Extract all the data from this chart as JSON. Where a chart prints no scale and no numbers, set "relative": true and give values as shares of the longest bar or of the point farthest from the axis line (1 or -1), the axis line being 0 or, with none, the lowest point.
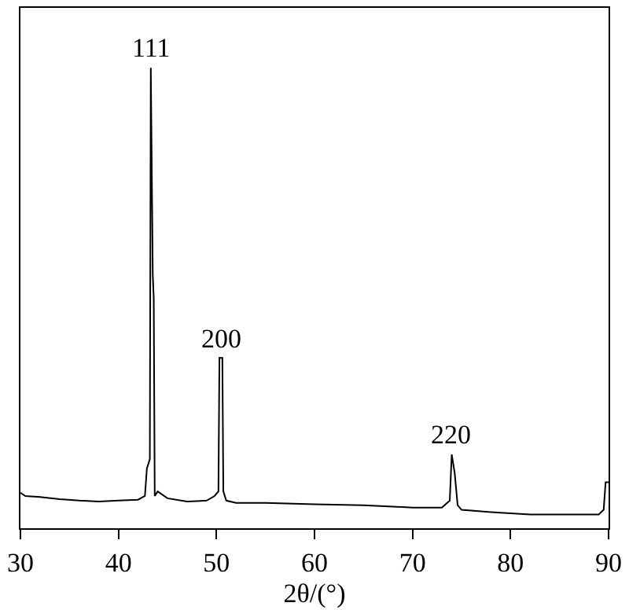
{
  "chart_data": {
    "type": "line",
    "relative": true,
    "xlabel": "2θ/(°)",
    "xlim": [
      30,
      90
    ],
    "xticks": [
      30,
      40,
      50,
      60,
      70,
      80,
      90
    ],
    "marker": "none",
    "line_style": "solid",
    "tick_labels": "x",
    "series": [
      {
        "color": "#000000",
        "x": [
          30,
          30.5,
          32,
          34,
          36,
          38,
          40,
          42,
          42.7,
          42.9,
          43.2,
          43.3,
          43.5,
          43.6,
          43.7,
          44,
          45,
          47,
          49,
          49.8,
          50.2,
          50.3,
          50.6,
          50.7,
          51,
          52,
          55,
          60,
          65,
          70,
          73,
          73.8,
          74.0,
          74.3,
          74.6,
          75,
          78,
          82,
          86,
          89,
          89.5,
          89.7,
          90
        ],
        "values": [
          0.077,
          0.07,
          0.068,
          0.063,
          0.06,
          0.058,
          0.06,
          0.062,
          0.07,
          0.13,
          0.15,
          1.0,
          0.55,
          0.5,
          0.07,
          0.08,
          0.065,
          0.058,
          0.06,
          0.07,
          0.08,
          0.37,
          0.37,
          0.08,
          0.06,
          0.055,
          0.055,
          0.052,
          0.05,
          0.045,
          0.045,
          0.06,
          0.16,
          0.12,
          0.05,
          0.04,
          0.035,
          0.03,
          0.03,
          0.03,
          0.04,
          0.1,
          0.1
        ]
      }
    ],
    "annotations": [
      {
        "text": "111",
        "x": 43.3,
        "y": 1.0
      },
      {
        "text": "200",
        "x": 50.5,
        "y": 0.37
      },
      {
        "text": "220",
        "x": 74.0,
        "y": 0.16
      }
    ]
  }
}
